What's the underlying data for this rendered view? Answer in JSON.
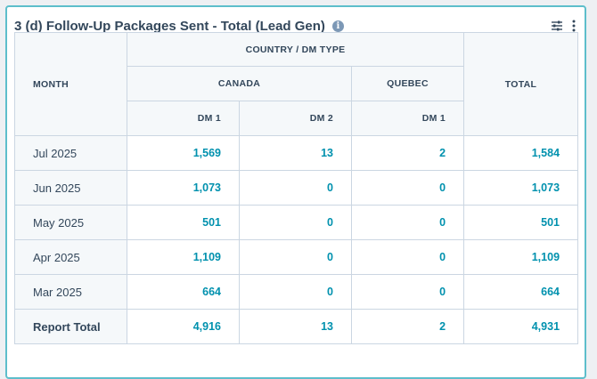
{
  "report": {
    "title": "3 (d) Follow-Up Packages Sent - Total (Lead Gen)",
    "info_glyph": "i"
  },
  "headers": {
    "month": "MONTH",
    "group": "COUNTRY / DM TYPE",
    "canada": "CANADA",
    "quebec": "QUEBEC",
    "total": "TOTAL",
    "canada_dm1": "DM 1",
    "canada_dm2": "DM 2",
    "quebec_dm1": "DM 1"
  },
  "rows": [
    {
      "month": "Jul 2025",
      "canada_dm1": "1,569",
      "canada_dm2": "13",
      "quebec_dm1": "2",
      "total": "1,584"
    },
    {
      "month": "Jun 2025",
      "canada_dm1": "1,073",
      "canada_dm2": "0",
      "quebec_dm1": "0",
      "total": "1,073"
    },
    {
      "month": "May 2025",
      "canada_dm1": "501",
      "canada_dm2": "0",
      "quebec_dm1": "0",
      "total": "501"
    },
    {
      "month": "Apr 2025",
      "canada_dm1": "1,109",
      "canada_dm2": "0",
      "quebec_dm1": "0",
      "total": "1,109"
    },
    {
      "month": "Mar 2025",
      "canada_dm1": "664",
      "canada_dm2": "0",
      "quebec_dm1": "0",
      "total": "664"
    }
  ],
  "report_total": {
    "month": "Report Total",
    "canada_dm1": "4,916",
    "canada_dm2": "13",
    "quebec_dm1": "2",
    "total": "4,931"
  },
  "colors": {
    "accent_border": "#5dbecb",
    "link_value": "#0091ae",
    "header_bg": "#f5f8fa",
    "grid": "#cbd6e2",
    "text": "#33475b"
  },
  "icons": {
    "info": "info-icon",
    "filter": "filter-icon",
    "more": "more-vertical-icon"
  }
}
